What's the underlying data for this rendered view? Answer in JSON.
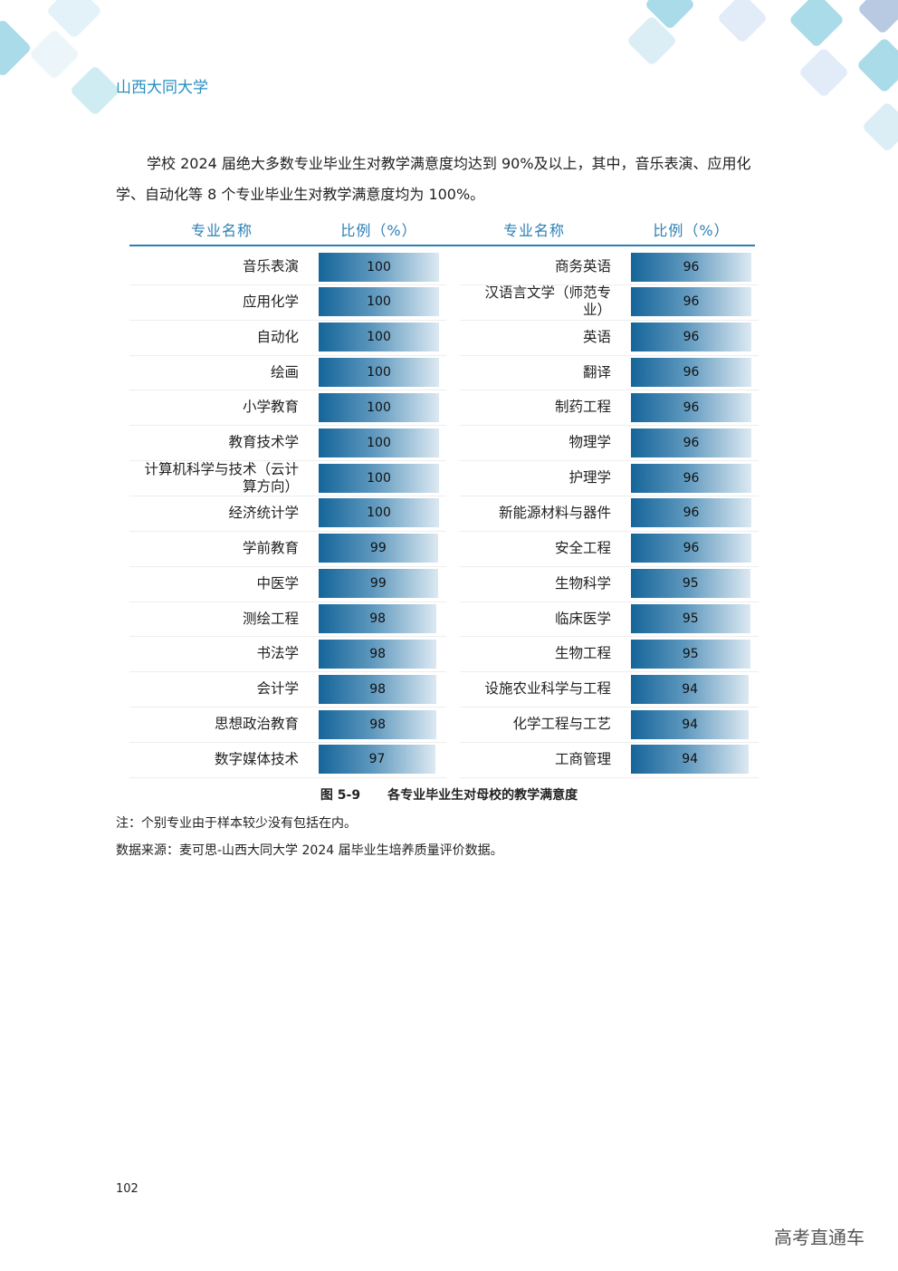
{
  "header": {
    "title": "山西大同大学"
  },
  "paragraph": "学校 2024 届绝大多数专业毕业生对教学满意度均达到 90%及以上，其中，音乐表演、应用化学、自动化等 8 个专业毕业生对教学满意度均为 100%。",
  "table": {
    "headers": [
      "专业名称",
      "比例（%）",
      "专业名称",
      "比例（%）"
    ],
    "left": [
      {
        "name": "音乐表演",
        "value": 100
      },
      {
        "name": "应用化学",
        "value": 100
      },
      {
        "name": "自动化",
        "value": 100
      },
      {
        "name": "绘画",
        "value": 100
      },
      {
        "name": "小学教育",
        "value": 100
      },
      {
        "name": "教育技术学",
        "value": 100
      },
      {
        "name": "计算机科学与技术（云计算方向）",
        "value": 100
      },
      {
        "name": "经济统计学",
        "value": 100
      },
      {
        "name": "学前教育",
        "value": 99
      },
      {
        "name": "中医学",
        "value": 99
      },
      {
        "name": "测绘工程",
        "value": 98
      },
      {
        "name": "书法学",
        "value": 98
      },
      {
        "name": "会计学",
        "value": 98
      },
      {
        "name": "思想政治教育",
        "value": 98
      },
      {
        "name": "数字媒体技术",
        "value": 97
      }
    ],
    "right": [
      {
        "name": "商务英语",
        "value": 96
      },
      {
        "name": "汉语言文学（师范专业）",
        "value": 96
      },
      {
        "name": "英语",
        "value": 96
      },
      {
        "name": "翻译",
        "value": 96
      },
      {
        "name": "制药工程",
        "value": 96
      },
      {
        "name": "物理学",
        "value": 96
      },
      {
        "name": "护理学",
        "value": 96
      },
      {
        "name": "新能源材料与器件",
        "value": 96
      },
      {
        "name": "安全工程",
        "value": 96
      },
      {
        "name": "生物科学",
        "value": 95
      },
      {
        "name": "临床医学",
        "value": 95
      },
      {
        "name": "生物工程",
        "value": 95
      },
      {
        "name": "设施农业科学与工程",
        "value": 94
      },
      {
        "name": "化学工程与工艺",
        "value": 94
      },
      {
        "name": "工商管理",
        "value": 94
      }
    ]
  },
  "caption": {
    "number": "图 5-9",
    "title": "各专业毕业生对母校的教学满意度"
  },
  "notes": [
    "注：个别专业由于样本较少没有包括在内。",
    "数据来源：麦可思-山西大同大学 2024 届毕业生培养质量评价数据。"
  ],
  "page_number": "102",
  "watermark": "高考直通车"
}
